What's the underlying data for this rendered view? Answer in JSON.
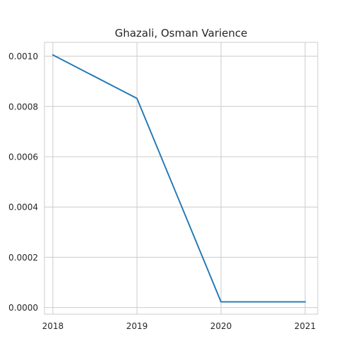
{
  "chart_data": {
    "type": "line",
    "title": "Ghazali, Osman Varience",
    "xlabel": "",
    "ylabel": "",
    "x": [
      2018,
      2019,
      2020,
      2021
    ],
    "x_tick_labels": [
      "2018",
      "2019",
      "2020",
      "2021"
    ],
    "series": [
      {
        "values": [
          0.001005,
          0.000832,
          2.25e-05,
          2.25e-05
        ],
        "color": "#1f77b4"
      }
    ],
    "y_ticks": [
      0.0,
      0.0002,
      0.0004,
      0.0006,
      0.0008,
      0.001
    ],
    "y_tick_labels": [
      "0.0000",
      "0.0002",
      "0.0004",
      "0.0006",
      "0.0008",
      "0.0010"
    ],
    "xlim": [
      2017.9,
      2021.15
    ],
    "ylim": [
      -2.64e-05,
      0.001055
    ],
    "grid": true,
    "legend": "none"
  }
}
